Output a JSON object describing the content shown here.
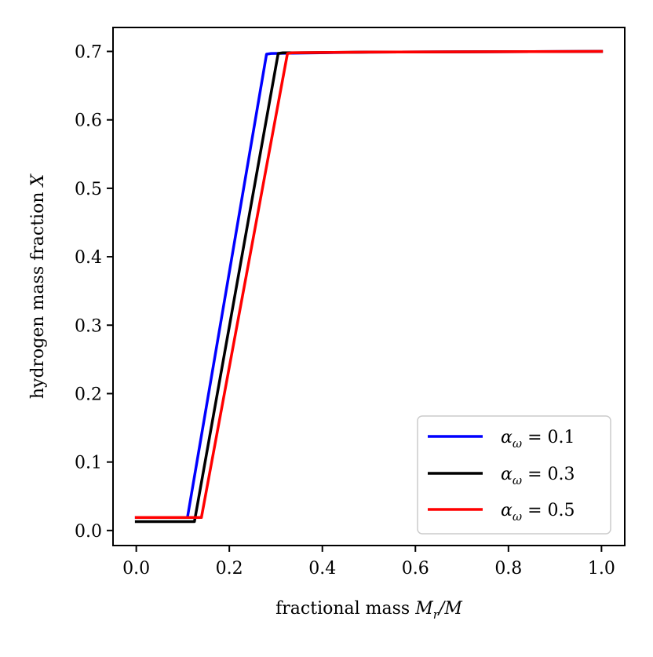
{
  "chart_data": {
    "type": "line",
    "title": "",
    "xlabel": {
      "text": "fractional mass",
      "math": "M",
      "math_sub": "r",
      "math_tail": "/M"
    },
    "ylabel": {
      "text": "hydrogen mass fraction",
      "math": "X"
    },
    "xlim": [
      -0.05,
      1.05
    ],
    "ylim": [
      -0.022,
      0.735
    ],
    "xticks": [
      {
        "value": 0.0,
        "label": "0.0"
      },
      {
        "value": 0.2,
        "label": "0.2"
      },
      {
        "value": 0.4,
        "label": "0.4"
      },
      {
        "value": 0.6,
        "label": "0.6"
      },
      {
        "value": 0.8,
        "label": "0.8"
      },
      {
        "value": 1.0,
        "label": "1.0"
      }
    ],
    "yticks": [
      {
        "value": 0.0,
        "label": "0.0"
      },
      {
        "value": 0.1,
        "label": "0.1"
      },
      {
        "value": 0.2,
        "label": "0.2"
      },
      {
        "value": 0.3,
        "label": "0.3"
      },
      {
        "value": 0.4,
        "label": "0.4"
      },
      {
        "value": 0.5,
        "label": "0.5"
      },
      {
        "value": 0.6,
        "label": "0.6"
      },
      {
        "value": 0.7,
        "label": "0.7"
      }
    ],
    "grid": false,
    "legend_position": "bottom-right",
    "series": [
      {
        "name": "alpha-0.1",
        "label_symbol": "α",
        "label_sub": "ω",
        "label_value": " = 0.1",
        "color": "#0000ff",
        "x": [
          0.0,
          0.11,
          0.28,
          0.29,
          0.5,
          1.0
        ],
        "y": [
          0.019,
          0.019,
          0.696,
          0.697,
          0.699,
          0.7
        ]
      },
      {
        "name": "alpha-0.3",
        "label_symbol": "α",
        "label_sub": "ω",
        "label_value": " = 0.3",
        "color": "#000000",
        "x": [
          0.0,
          0.125,
          0.305,
          0.315,
          0.5,
          1.0
        ],
        "y": [
          0.013,
          0.013,
          0.697,
          0.698,
          0.699,
          0.7
        ]
      },
      {
        "name": "alpha-0.5",
        "label_symbol": "α",
        "label_sub": "ω",
        "label_value": " = 0.5",
        "color": "#ff0000",
        "x": [
          0.0,
          0.14,
          0.325,
          0.335,
          0.5,
          1.0
        ],
        "y": [
          0.019,
          0.019,
          0.697,
          0.698,
          0.699,
          0.7
        ]
      }
    ]
  }
}
